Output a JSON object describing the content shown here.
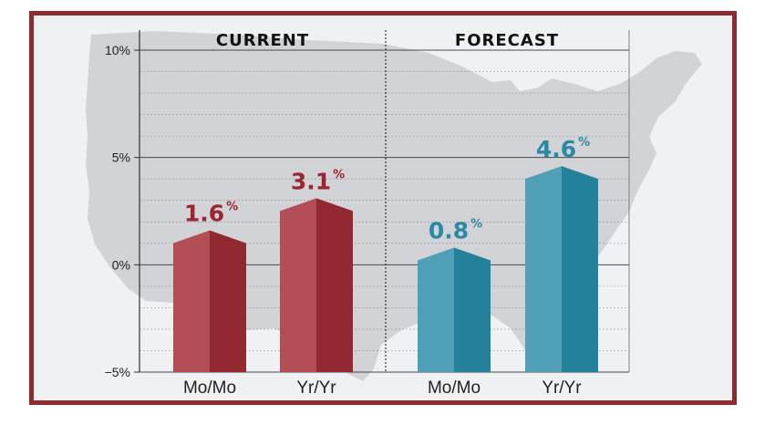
{
  "chart_data": {
    "type": "bar",
    "y_ticks": [
      {
        "value": 10,
        "label": "10%"
      },
      {
        "value": 5,
        "label": "5%"
      },
      {
        "value": 0,
        "label": "0%"
      },
      {
        "value": -5,
        "label": "−5%"
      }
    ],
    "ylim": [
      -5,
      10
    ],
    "grid": true,
    "groups": [
      {
        "title": "CURRENT",
        "bars": [
          {
            "category": "Mo/Mo",
            "value": 1.6,
            "value_text": "1.6",
            "unit": "%"
          },
          {
            "category": "Yr/Yr",
            "value": 3.1,
            "value_text": "3.1",
            "unit": "%"
          }
        ]
      },
      {
        "title": "FORECAST",
        "bars": [
          {
            "category": "Mo/Mo",
            "value": 0.8,
            "value_text": "0.8",
            "unit": "%"
          },
          {
            "category": "Yr/Yr",
            "value": 4.6,
            "value_text": "4.6",
            "unit": "%"
          }
        ]
      }
    ]
  },
  "colors": {
    "current_face_left": "#b34d56",
    "current_face_right": "#922830",
    "current_label": "#9b2530",
    "forecast_face_left": "#4fa0b6",
    "forecast_face_right": "#24819c",
    "forecast_label": "#2a89a4",
    "frame": "#8f2a30",
    "map": "#d2d3d6",
    "grid": "#666666"
  },
  "background": {
    "icon": "us-map-silhouette"
  }
}
